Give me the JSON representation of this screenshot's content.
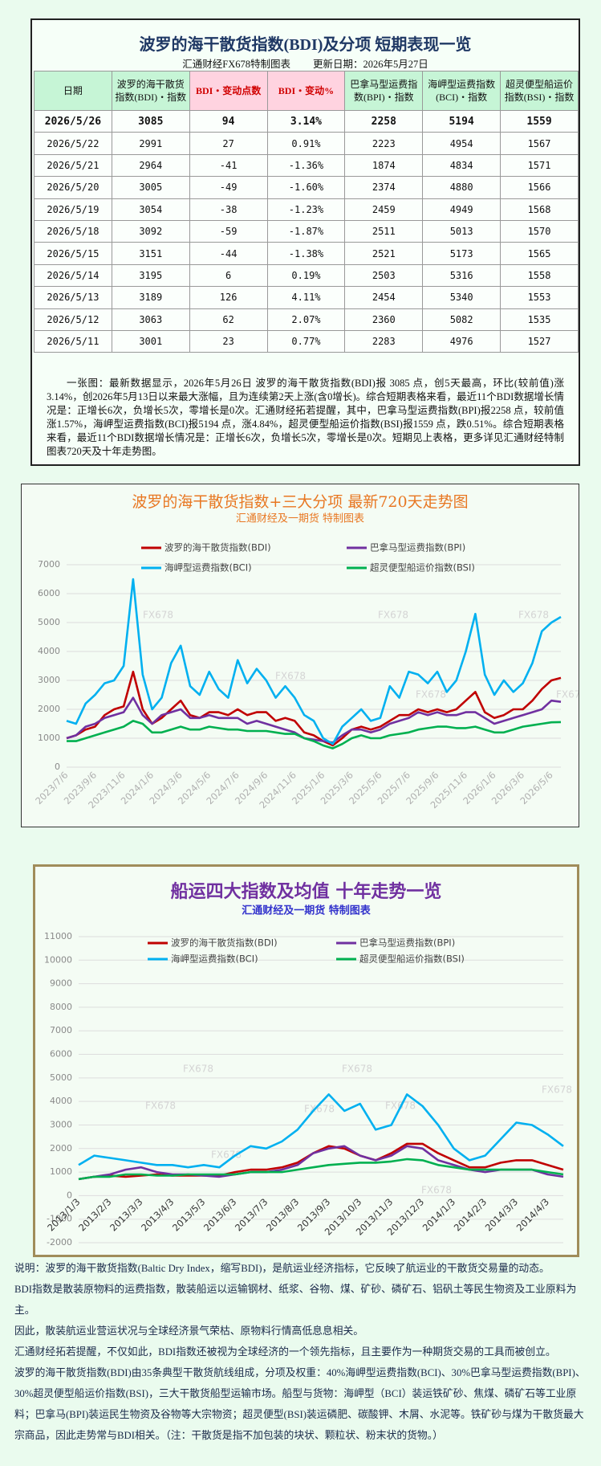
{
  "header": {
    "title": "波罗的海干散货指数(BDI)及分项  短期表现一览",
    "subtitle": "汇通财经FX678特制图表",
    "updated": "更新日期：2026年5月27日"
  },
  "table": {
    "columns": [
      "日期",
      "波罗的海干散货指数(BDI)・指数",
      "BDI・变动点数",
      "BDI・变动%",
      "巴拿马型运费指数(BPI)・指数",
      "海岬型运费指数(BCI)・指数",
      "超灵便型船运价指数(BSI)・指数"
    ],
    "rows": [
      [
        "2026/5/26",
        "3085",
        "94",
        "3.14%",
        "2258",
        "5194",
        "1559"
      ],
      [
        "2026/5/22",
        "2991",
        "27",
        "0.91%",
        "2223",
        "4954",
        "1567"
      ],
      [
        "2026/5/21",
        "2964",
        "-41",
        "-1.36%",
        "1874",
        "4834",
        "1571"
      ],
      [
        "2026/5/20",
        "3005",
        "-49",
        "-1.60%",
        "2374",
        "4880",
        "1566"
      ],
      [
        "2026/5/19",
        "3054",
        "-38",
        "-1.23%",
        "2459",
        "4949",
        "1568"
      ],
      [
        "2026/5/18",
        "3092",
        "-59",
        "-1.87%",
        "2511",
        "5013",
        "1570"
      ],
      [
        "2026/5/15",
        "3151",
        "-44",
        "-1.38%",
        "2521",
        "5173",
        "1565"
      ],
      [
        "2026/5/14",
        "3195",
        "6",
        "0.19%",
        "2503",
        "5316",
        "1558"
      ],
      [
        "2026/5/13",
        "3189",
        "126",
        "4.11%",
        "2454",
        "5340",
        "1553"
      ],
      [
        "2026/5/12",
        "3063",
        "62",
        "2.07%",
        "2360",
        "5082",
        "1535"
      ],
      [
        "2026/5/11",
        "3001",
        "23",
        "0.77%",
        "2283",
        "4976",
        "1527"
      ]
    ]
  },
  "summary": "一张图：最新数据显示，2026年5月26日 波罗的海干散货指数(BDI)报 3085 点，创5天最高，环比(较前值)涨3.14%，创2026年5月13日以来最大涨幅，且为连续第2天上涨(含0增长)。综合短期表格来看，最近11个BDI数据增长情况是：正增长6次，负增长5次，零增长是0次。汇通财经拓若提醒，其中，巴拿马型运费指数(BPI)报2258 点，较前值涨1.57%，海岬型运费指数(BCI)报5194 点，涨4.84%，超灵便型船运价指数(BSI)报1559 点，跌0.51%。综合短期表格来看，最近11个BDI数据增长情况是：正增长6次，负增长5次，零增长是0次。短期见上表格，更多详见汇通财经特制图表720天及十年走势图。",
  "chart_data": [
    {
      "type": "line",
      "title": "波罗的海干散货指数+三大分项  最新720天走势图",
      "subtitle": "汇通财经及一期货 特制图表",
      "watermark": "FX678",
      "grid": true,
      "legend": "top",
      "categories": [
        "2023/7/6",
        null,
        null,
        "2023/9/6",
        null,
        null,
        "2023/11/6",
        null,
        null,
        "2024/1/6",
        null,
        null,
        "2024/3/6",
        null,
        null,
        "2024/5/6",
        null,
        null,
        "2024/7/6",
        null,
        null,
        "2024/9/6",
        null,
        null,
        "2024/11/6",
        null,
        null,
        "2025/1/6",
        null,
        null,
        "2025/3/6",
        null,
        null,
        "2025/5/6",
        null,
        null,
        "2025/7/6",
        null,
        null,
        "2025/9/6",
        null,
        null,
        "2025/11/6",
        null,
        null,
        "2026/1/6",
        null,
        null,
        "2026/3/6",
        null,
        null,
        "2026/5/6",
        null
      ],
      "ylim": [
        0,
        7000
      ],
      "yticks": [
        0,
        1000,
        2000,
        3000,
        4000,
        5000,
        6000,
        7000
      ],
      "series": [
        {
          "name": "波罗的海干散货指数(BDI)",
          "color": "#c00000",
          "values": [
            1000,
            1100,
            1300,
            1400,
            1800,
            2000,
            2100,
            3300,
            2000,
            1500,
            1700,
            2000,
            2300,
            1800,
            1700,
            1900,
            1900,
            1800,
            2000,
            1800,
            1900,
            1900,
            1600,
            1700,
            1600,
            1200,
            1100,
            900,
            750,
            1000,
            1300,
            1400,
            1300,
            1400,
            1600,
            1800,
            1800,
            2000,
            1900,
            2000,
            1900,
            2000,
            2300,
            2600,
            1900,
            1700,
            1800,
            2000,
            2000,
            2300,
            2700,
            3000,
            3085
          ]
        },
        {
          "name": "巴拿马型运费指数(BPI)",
          "color": "#7030a0",
          "values": [
            1000,
            1100,
            1400,
            1500,
            1700,
            1800,
            1900,
            2400,
            1800,
            1500,
            1800,
            1900,
            2000,
            1700,
            1700,
            1800,
            1700,
            1700,
            1700,
            1500,
            1600,
            1500,
            1400,
            1300,
            1200,
            1000,
            950,
            900,
            850,
            1100,
            1300,
            1300,
            1200,
            1300,
            1500,
            1600,
            1700,
            1900,
            1800,
            1900,
            1800,
            1800,
            1900,
            1900,
            1700,
            1500,
            1600,
            1700,
            1800,
            1900,
            2000,
            2300,
            2258
          ]
        },
        {
          "name": "海岬型运费指数(BCI)",
          "color": "#00b0f0",
          "values": [
            1600,
            1500,
            2200,
            2500,
            2900,
            3000,
            3500,
            6500,
            3200,
            2000,
            2400,
            3600,
            4200,
            2800,
            2500,
            3300,
            2700,
            2400,
            3700,
            2900,
            3400,
            3000,
            2400,
            2800,
            2400,
            1800,
            1600,
            1000,
            800,
            1400,
            1700,
            2000,
            1600,
            1700,
            2800,
            2400,
            3300,
            3200,
            2900,
            3300,
            2600,
            3000,
            4000,
            5300,
            3200,
            2500,
            3000,
            2600,
            2900,
            3600,
            4700,
            5000,
            5194
          ]
        },
        {
          "name": "超灵便型船运价指数(BSI)",
          "color": "#00b050",
          "values": [
            900,
            900,
            1000,
            1100,
            1200,
            1300,
            1400,
            1600,
            1500,
            1200,
            1200,
            1300,
            1400,
            1300,
            1300,
            1400,
            1350,
            1300,
            1300,
            1250,
            1250,
            1250,
            1200,
            1150,
            1150,
            1000,
            900,
            750,
            650,
            800,
            1000,
            1100,
            1000,
            1000,
            1100,
            1150,
            1200,
            1300,
            1350,
            1400,
            1400,
            1350,
            1350,
            1400,
            1300,
            1200,
            1200,
            1300,
            1400,
            1450,
            1500,
            1550,
            1559
          ]
        }
      ]
    },
    {
      "type": "line",
      "title": "船运四大指数及均值 十年走势一览",
      "subtitle": "汇通财经及一期货 特制图表",
      "watermark": "FX678",
      "grid": true,
      "legend": "top",
      "categories": [
        "2013/1/3",
        null,
        "2013/2/3",
        null,
        "2013/3/3",
        null,
        "2013/4/3",
        null,
        "2013/5/3",
        null,
        "2013/6/3",
        null,
        "2013/7/3",
        null,
        "2013/8/3",
        null,
        "2013/9/3",
        null,
        "2013/10/3",
        null,
        "2013/11/3",
        null,
        "2013/12/3",
        null,
        "2014/1/3",
        null,
        "2014/2/3",
        null,
        "2014/3/3",
        null,
        "2014/4/3",
        null
      ],
      "ylim": [
        -2000,
        11000
      ],
      "yticks": [
        -2000,
        -1000,
        0,
        1000,
        2000,
        3000,
        4000,
        5000,
        6000,
        7000,
        8000,
        9000,
        10000,
        11000
      ],
      "series": [
        {
          "name": "波罗的海干散货指数(BDI)",
          "color": "#c00000",
          "values": [
            700,
            800,
            850,
            800,
            850,
            900,
            850,
            850,
            850,
            850,
            1000,
            1100,
            1100,
            1200,
            1400,
            1800,
            2100,
            2000,
            1700,
            1500,
            1800,
            2200,
            2200,
            1800,
            1500,
            1200,
            1200,
            1400,
            1500,
            1500,
            1300,
            1100
          ]
        },
        {
          "name": "巴拿马型运费指数(BPI)",
          "color": "#7030a0",
          "values": [
            700,
            800,
            900,
            1100,
            1200,
            1000,
            900,
            900,
            850,
            800,
            900,
            1000,
            1000,
            1100,
            1300,
            1800,
            2000,
            2100,
            1700,
            1500,
            1700,
            2100,
            2000,
            1500,
            1300,
            1100,
            1000,
            1100,
            1100,
            1100,
            900,
            800
          ]
        },
        {
          "name": "海岬型运费指数(BCI)",
          "color": "#00b0f0",
          "values": [
            1300,
            1700,
            1600,
            1500,
            1400,
            1300,
            1300,
            1200,
            1300,
            1200,
            1700,
            2100,
            2000,
            2300,
            2800,
            3600,
            4300,
            3600,
            3900,
            2800,
            3000,
            4300,
            3800,
            3000,
            2000,
            1500,
            1700,
            2400,
            3100,
            3000,
            2600,
            2100
          ]
        },
        {
          "name": "超灵便型船运价指数(BSI)",
          "color": "#00b050",
          "values": [
            700,
            800,
            800,
            900,
            900,
            850,
            850,
            900,
            900,
            900,
            900,
            1000,
            1000,
            1000,
            1100,
            1200,
            1300,
            1350,
            1400,
            1400,
            1450,
            1550,
            1500,
            1300,
            1200,
            1100,
            1100,
            1100,
            1100,
            1100,
            1000,
            900
          ]
        }
      ]
    }
  ],
  "notes": [
    "说明：波罗的海干散货指数(Baltic Dry Index，缩写BDI)，是航运业经济指标，它反映了航运业的干散货交易量的动态。",
    "BDI指数是散装原物料的运费指数，散装船运以运输钢材、纸浆、谷物、煤、矿砂、磷矿石、铝矾土等民生物资及工业原料为主。",
    "因此，散装航运业营运状况与全球经济景气荣枯、原物料行情高低息息相关。",
    "汇通财经拓若提醒，不仅如此，BDI指数还被视为全球经济的一个领先指标，且主要作为一种期货交易的工具而被创立。",
    "波罗的海干散货指数(BDI)由35条典型干散货航线组成，分项及权重：40%海岬型运费指数(BCI)、30%巴拿马型运费指数(BPI)、30%超灵便型船运价指数(BSI)，三大干散货船型运输市场。船型与货物：海岬型（BCI）装运铁矿砂、焦煤、磷矿石等工业原料；巴拿马(BPI)装运民生物资及谷物等大宗物资；超灵便型(BSI)装运磷肥、碳酸钾、木屑、水泥等。铁矿砂与煤为干散货最大宗商品，因此走势常与BDI相关。（注：干散货是指不加包装的块状、颗粒状、粉末状的货物。）"
  ]
}
